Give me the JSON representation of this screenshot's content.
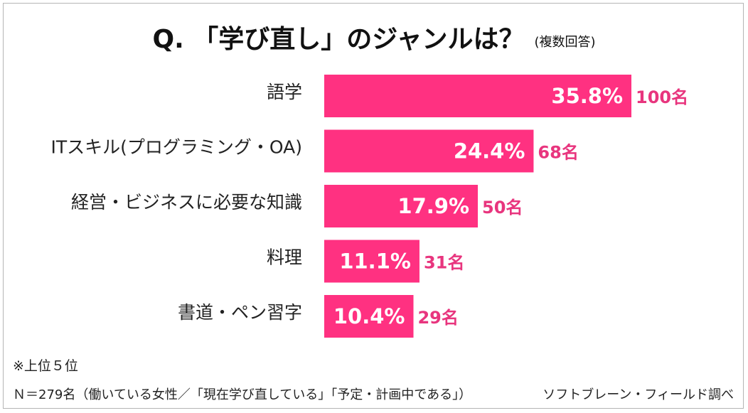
{
  "title": "Q. 「学び直し」のジャンルは？",
  "subtitle": "(複数回答)",
  "chart_data": {
    "type": "bar",
    "orientation": "horizontal",
    "categories": [
      "語学",
      "ITスキル(プログラミング・OA)",
      "経営・ビジネスに必要な知識",
      "料理",
      "書道・ペン習字"
    ],
    "values": [
      35.8,
      24.4,
      17.9,
      11.1,
      10.4
    ],
    "value_labels": [
      "35.8%",
      "24.4%",
      "17.9%",
      "11.1%",
      "10.4%"
    ],
    "counts": [
      "100名",
      "68名",
      "50名",
      "31名",
      "29名"
    ],
    "unit": "%",
    "xlim": [
      0,
      35.8
    ],
    "grid": false,
    "legend": "none",
    "bar_color": "#ff3181",
    "count_color": "#e8357e"
  },
  "footnotes": {
    "rank_note": "※上位５位",
    "sample": "Ｎ＝279名（働いている女性／「現在学び直している」「予定・計画中である」）",
    "source": "ソフトブレーン・フィールド調べ"
  }
}
